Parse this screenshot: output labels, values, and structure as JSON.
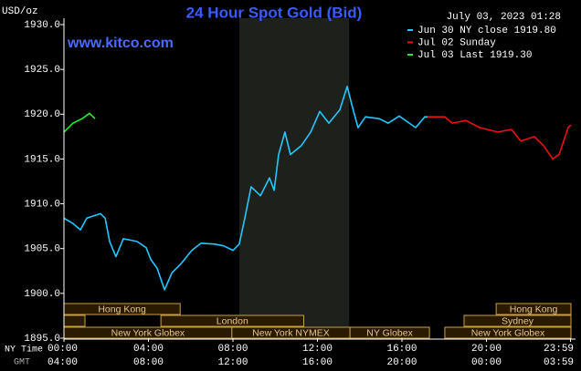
{
  "chart_data": {
    "type": "line",
    "title": "24 Hour Spot Gold (Bid)",
    "website": "www.kitco.com",
    "timestamp": "July 03, 2023 01:28",
    "y_label": "USD/oz",
    "x_axis_labels": [
      "NY Time",
      "GMT"
    ],
    "xlim": [
      0,
      24
    ],
    "ylim": [
      1895,
      1930
    ],
    "yticks": [
      {
        "value": 1895,
        "label": "1895.0"
      },
      {
        "value": 1900,
        "label": "1900.0"
      },
      {
        "value": 1905,
        "label": "1905.0"
      },
      {
        "value": 1910,
        "label": "1910.0"
      },
      {
        "value": 1915,
        "label": "1915.0"
      },
      {
        "value": 1920,
        "label": "1920.0"
      },
      {
        "value": 1925,
        "label": "1925.0"
      },
      {
        "value": 1930,
        "label": "1930.0"
      }
    ],
    "xticks": [
      {
        "value": 0,
        "label": "00:00"
      },
      {
        "value": 4,
        "label": "04:00"
      },
      {
        "value": 8,
        "label": "08:00"
      },
      {
        "value": 12,
        "label": "12:00"
      },
      {
        "value": 16,
        "label": "16:00"
      },
      {
        "value": 20,
        "label": "20:00"
      },
      {
        "value": 23.98,
        "label": "23:59"
      }
    ],
    "gmt_labels": [
      "04:00",
      "08:00",
      "12:00",
      "16:00",
      "20:00",
      "00:00",
      "03:59"
    ],
    "highlight_range": [
      8.3,
      13.5
    ],
    "legend": "upper right",
    "series": [
      {
        "name": "Jun 30 NY close 1919.80",
        "color": "#22c8ff",
        "x": [
          0,
          0.43,
          0.78,
          1.08,
          1.73,
          1.95,
          2.16,
          2.46,
          2.81,
          3.46,
          3.89,
          4.11,
          4.41,
          4.76,
          5.11,
          5.54,
          6.05,
          6.49,
          7.14,
          7.57,
          8.0,
          8.3,
          8.56,
          8.86,
          9.3,
          9.73,
          9.95,
          10.16,
          10.46,
          10.72,
          11.24,
          11.68,
          12.11,
          12.54,
          13.06,
          13.41,
          13.62,
          13.92,
          14.27,
          14.92,
          15.35,
          15.87,
          16.35,
          16.65,
          17.08,
          17.21
        ],
        "values": [
          1908.4,
          1907.8,
          1907.1,
          1908.4,
          1908.9,
          1908.4,
          1905.8,
          1904.1,
          1906.1,
          1905.8,
          1905.1,
          1903.8,
          1902.8,
          1900.4,
          1902.3,
          1903.3,
          1904.8,
          1905.6,
          1905.5,
          1905.3,
          1904.8,
          1905.5,
          1908.4,
          1911.9,
          1910.9,
          1912.9,
          1911.5,
          1915.5,
          1918.0,
          1915.5,
          1916.5,
          1918.0,
          1920.3,
          1919.0,
          1920.5,
          1923.1,
          1921.1,
          1918.5,
          1919.7,
          1919.5,
          1919.0,
          1919.8,
          1919.0,
          1918.5,
          1919.7,
          1919.7
        ]
      },
      {
        "name": "Jul 02 Sunday",
        "color": "#ee1111",
        "x": [
          17.21,
          18.03,
          18.38,
          19.03,
          19.68,
          20.54,
          21.19,
          21.62,
          22.27,
          22.7,
          23.14,
          23.44,
          23.87,
          24.0
        ],
        "values": [
          1919.7,
          1919.7,
          1919.0,
          1919.3,
          1918.5,
          1918.0,
          1918.3,
          1917.0,
          1917.5,
          1916.5,
          1915.0,
          1915.5,
          1918.5,
          1918.8
        ]
      },
      {
        "name": "Jul 03 Last 1919.30",
        "color": "#22ee22",
        "x": [
          0,
          0.43,
          0.86,
          1.21,
          1.47
        ],
        "values": [
          1918.0,
          1919.0,
          1919.5,
          1920.1,
          1919.5
        ]
      }
    ],
    "sessions": [
      {
        "label": "Hong Kong",
        "start": 0,
        "end": 5.5
      },
      {
        "label": "London",
        "start": 4.59,
        "end": 11.35
      },
      {
        "label": "New York Globex",
        "start": 0,
        "end": 7.95
      },
      {
        "label": "New York NYMEX",
        "start": 7.95,
        "end": 13.54
      },
      {
        "label": "NY Globex",
        "start": 13.54,
        "end": 17.3
      },
      {
        "label": "Hong Kong",
        "start": 20.46,
        "end": 24
      },
      {
        "label": "Sydney",
        "start": 18.94,
        "end": 24
      },
      {
        "label": "New York Globex",
        "start": 18.03,
        "end": 24
      }
    ]
  }
}
